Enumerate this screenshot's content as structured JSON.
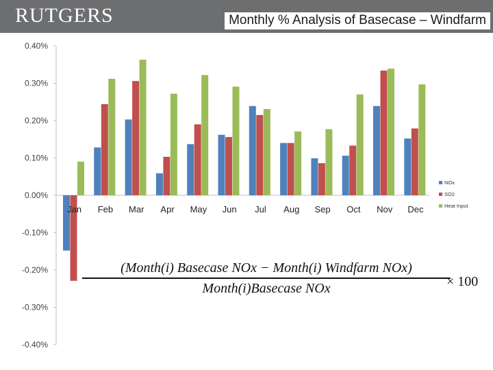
{
  "header": {
    "logo_text": "RUTGERS",
    "title": "Monthly % Analysis of Basecase – Windfarm"
  },
  "colors": {
    "header_bg": "#6d6e70",
    "nox": "#4f81bd",
    "so2": "#c0504d",
    "heat_input": "#9bbb59"
  },
  "formula": {
    "numerator": "(Month(i) Basecase NOx − Month(i) Windfarm NOx)",
    "denominator": "Month(i)Basecase NOx",
    "multiplier": "× 100"
  },
  "chart_data": {
    "type": "bar",
    "categories": [
      "Jan",
      "Feb",
      "Mar",
      "Apr",
      "May",
      "Jun",
      "Jul",
      "Aug",
      "Sep",
      "Oct",
      "Nov",
      "Dec"
    ],
    "series": [
      {
        "name": "NOx",
        "color": "#4f81bd",
        "values": [
          -0.148,
          0.128,
          0.203,
          0.059,
          0.137,
          0.162,
          0.239,
          0.14,
          0.099,
          0.106,
          0.239,
          0.152
        ]
      },
      {
        "name": "SO2",
        "color": "#c0504d",
        "values": [
          -0.229,
          0.244,
          0.306,
          0.103,
          0.19,
          0.156,
          0.215,
          0.14,
          0.086,
          0.133,
          0.334,
          0.179
        ]
      },
      {
        "name": "Heat Input",
        "color": "#9bbb59",
        "values": [
          0.09,
          0.312,
          0.363,
          0.272,
          0.322,
          0.291,
          0.231,
          0.171,
          0.177,
          0.27,
          0.339,
          0.297
        ]
      }
    ],
    "ylim": [
      -0.4,
      0.4
    ],
    "yticks": [
      "0.40%",
      "0.30%",
      "0.20%",
      "0.10%",
      "0.00%",
      "-0.10%",
      "-0.20%",
      "-0.30%",
      "-0.40%"
    ],
    "legend_position": "right",
    "grid": false
  }
}
